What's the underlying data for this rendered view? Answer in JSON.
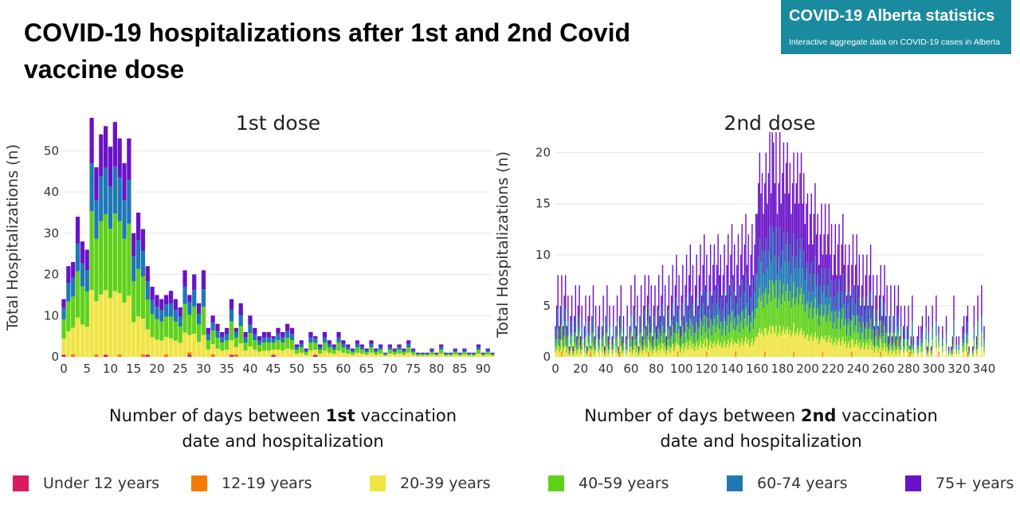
{
  "header": {
    "title": "COVID-19 hospitalizations after 1st and 2nd Covid vaccine dose",
    "badge_title": "COVID-19 Alberta statistics",
    "badge_subtitle": "Interactive aggregate data on COVID-19 cases in Alberta"
  },
  "captions": {
    "dose1_pre": "Number of days between ",
    "dose1_bold": "1st",
    "dose1_post": " vaccination",
    "dose1_line2": "date and hospitalization",
    "dose2_pre": "Number of days between ",
    "dose2_bold": "2nd",
    "dose2_post": " vaccination",
    "dose2_line2": "date and hospitalization"
  },
  "legend": [
    {
      "label": "Under 12 years",
      "color": "#d81b60"
    },
    {
      "label": "12-19 years",
      "color": "#f57c00"
    },
    {
      "label": "20-39 years",
      "color": "#f0e442"
    },
    {
      "label": "40-59 years",
      "color": "#5fd11a"
    },
    {
      "label": "60-74 years",
      "color": "#1f78b4"
    },
    {
      "label": "75+ years",
      "color": "#6a12c8"
    }
  ],
  "chart_data": [
    {
      "type": "bar",
      "stacked": true,
      "title": "1st dose",
      "xlabel": "Number of days between 1st vaccination date and hospitalization",
      "ylabel": "Total Hospitalizations (n)",
      "xlim": [
        0,
        92
      ],
      "ylim": [
        0,
        58
      ],
      "xticks": [
        0,
        5,
        10,
        15,
        20,
        25,
        30,
        35,
        40,
        45,
        50,
        55,
        60,
        65,
        70,
        75,
        80,
        85,
        90
      ],
      "yticks": [
        0,
        10,
        20,
        30,
        40,
        50
      ],
      "grid": true,
      "series_names": [
        "Under 12 years",
        "12-19 years",
        "20-39 years",
        "40-59 years",
        "60-74 years",
        "75+ years"
      ],
      "totals": [
        14,
        22,
        23,
        34,
        28,
        26,
        58,
        46,
        54,
        56,
        51,
        57,
        53,
        47,
        53,
        30,
        35,
        31,
        22,
        17,
        15,
        14,
        15,
        16,
        14,
        12,
        21,
        15,
        20,
        13,
        21,
        7,
        10,
        8,
        6,
        7,
        14,
        7,
        13,
        6,
        10,
        7,
        5,
        6,
        6,
        5,
        7,
        6,
        8,
        7,
        3,
        4,
        2,
        6,
        5,
        3,
        6,
        4,
        3,
        6,
        4,
        3,
        2,
        4,
        3,
        2,
        4,
        2,
        3,
        1,
        3,
        2,
        3,
        2,
        4,
        2,
        1,
        1,
        1,
        2,
        1,
        3,
        1,
        1,
        2,
        1,
        2,
        1,
        1,
        3,
        1,
        2,
        1
      ]
    },
    {
      "type": "bar",
      "stacked": true,
      "title": "2nd dose",
      "xlabel": "Number of days between 2nd vaccination date and hospitalization",
      "ylabel": "Total Hospitalizations (n)",
      "xlim": [
        0,
        340
      ],
      "ylim": [
        0,
        22
      ],
      "xticks": [
        0,
        20,
        40,
        60,
        80,
        100,
        120,
        140,
        160,
        180,
        200,
        220,
        240,
        260,
        280,
        300,
        320,
        340
      ],
      "yticks": [
        0,
        5,
        10,
        15,
        20
      ],
      "grid": true,
      "series_names": [
        "Under 12 years",
        "12-19 years",
        "20-39 years",
        "40-59 years",
        "60-74 years",
        "75+ years"
      ],
      "peak_days": [
        170,
        172,
        175,
        178
      ],
      "peak_value": 22
    }
  ]
}
